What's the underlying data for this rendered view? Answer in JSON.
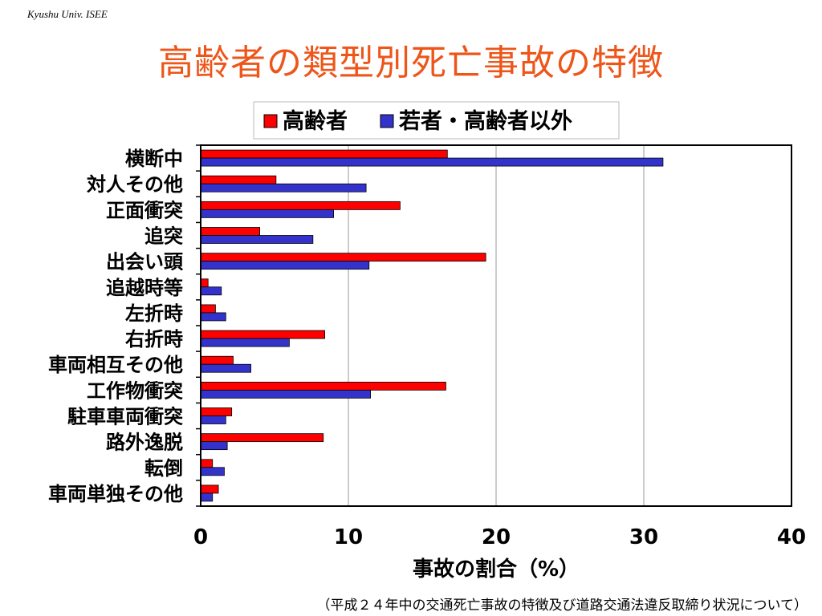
{
  "header": {
    "org_text": "Kyushu Univ. ISEE"
  },
  "slide": {
    "title": "高齢者の類型別死亡事故の特徴",
    "footnote": "（平成２４年中の交通死亡事故の特徴及び道路交通法違反取締り状況について）"
  },
  "chart_data": {
    "type": "bar",
    "orientation": "horizontal",
    "categories": [
      "横断中",
      "対人その他",
      "正面衝突",
      "追突",
      "出会い頭",
      "追越時等",
      "左折時",
      "右折時",
      "車両相互その他",
      "工作物衝突",
      "駐車車両衝突",
      "路外逸脱",
      "転倒",
      "車両単独その他"
    ],
    "series": [
      {
        "name": "高齢者",
        "color": "#ff0000",
        "values": [
          16.7,
          5.1,
          13.5,
          4.0,
          19.3,
          0.5,
          1.0,
          8.4,
          2.2,
          16.6,
          2.1,
          8.3,
          0.8,
          1.2
        ]
      },
      {
        "name": "若者・高齢者以外",
        "color": "#3333cc",
        "values": [
          31.3,
          11.2,
          9.0,
          7.6,
          11.4,
          1.4,
          1.7,
          6.0,
          3.4,
          11.5,
          1.7,
          1.8,
          1.6,
          0.8
        ]
      }
    ],
    "xlabel": "事故の割合（%）",
    "xlim": [
      0,
      40
    ],
    "xticks": [
      0,
      10,
      20,
      30,
      40
    ],
    "grid": true,
    "legend_position": "top"
  }
}
